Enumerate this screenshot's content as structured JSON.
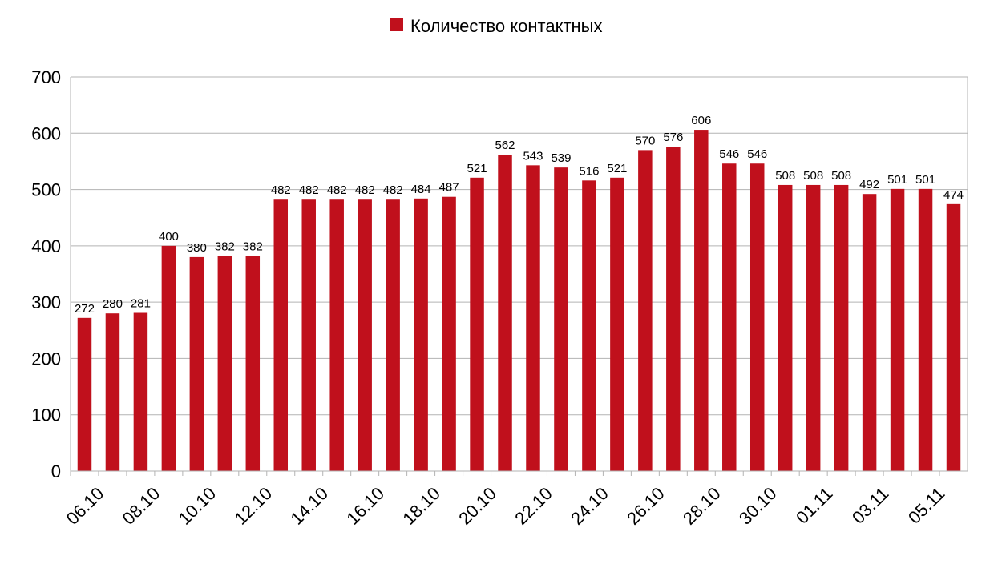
{
  "chart_data": {
    "type": "bar",
    "title": "",
    "xlabel": "",
    "ylabel": "",
    "ylim": [
      0,
      700
    ],
    "yticks": [
      0,
      100,
      200,
      300,
      400,
      500,
      600,
      700
    ],
    "grid": true,
    "legend_position": "top-center",
    "categories": [
      "06.10",
      "07.10",
      "08.10",
      "09.10",
      "10.10",
      "11.10",
      "12.10",
      "13.10",
      "14.10",
      "15.10",
      "16.10",
      "17.10",
      "18.10",
      "19.10",
      "20.10",
      "21.10",
      "22.10",
      "23.10",
      "24.10",
      "25.10",
      "26.10",
      "27.10",
      "28.10",
      "29.10",
      "30.10",
      "31.10",
      "01.11",
      "02.11",
      "03.11",
      "04.11",
      "05.11",
      "06.11"
    ],
    "tick_labels_shown": [
      "06.10",
      "08.10",
      "10.10",
      "12.10",
      "14.10",
      "16.10",
      "18.10",
      "20.10",
      "22.10",
      "24.10",
      "26.10",
      "28.10",
      "30.10",
      "01.11",
      "03.11",
      "05.11"
    ],
    "series": [
      {
        "name": "Количество контактных",
        "color": "#c0101c",
        "values": [
          272,
          280,
          281,
          400,
          380,
          382,
          382,
          482,
          482,
          482,
          482,
          482,
          484,
          487,
          521,
          562,
          543,
          539,
          516,
          521,
          570,
          576,
          606,
          546,
          546,
          508,
          508,
          508,
          492,
          501,
          501,
          474
        ]
      }
    ]
  }
}
